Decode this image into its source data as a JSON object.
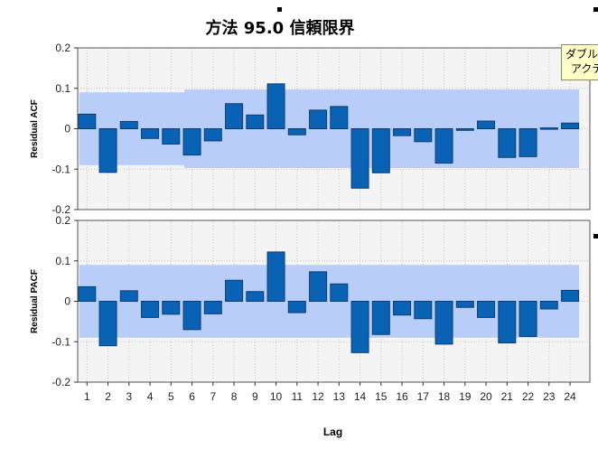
{
  "title": "方法 95.0 信頼限界",
  "tooltip": {
    "line1": "ダブル",
    "line2": "アクテ"
  },
  "colors": {
    "bar_fill": "#0a62b4",
    "bar_stroke": "#0a3d78",
    "confidence_band": "#b8cef8",
    "plot_background": "#f4f4f4",
    "grid": "#c8c8c8"
  },
  "chart_data": [
    {
      "type": "bar",
      "name": "acf",
      "ylabel": "Residual ACF",
      "xlabel": "",
      "ylim": [
        -0.2,
        0.2
      ],
      "yticks": [
        -0.2,
        -0.1,
        0,
        0.1,
        0.2
      ],
      "ytick_labels": [
        "-0.2",
        "-0.1",
        "0",
        "0.1",
        "0.2"
      ],
      "grid": true,
      "categories": [
        1,
        2,
        3,
        4,
        5,
        6,
        7,
        8,
        9,
        10,
        11,
        12,
        13,
        14,
        15,
        16,
        17,
        18,
        19,
        20,
        21,
        22,
        23,
        24
      ],
      "values": [
        0.036,
        -0.108,
        0.018,
        -0.024,
        -0.038,
        -0.065,
        -0.03,
        0.062,
        0.034,
        0.111,
        -0.015,
        0.046,
        0.055,
        -0.147,
        -0.109,
        -0.017,
        -0.032,
        -0.085,
        -0.004,
        0.019,
        -0.071,
        -0.069,
        0.002,
        0.014
      ],
      "confidence_band": {
        "segments": [
          {
            "from_lag": 1,
            "to_lag": 6,
            "limit": 0.09
          },
          {
            "from_lag": 6,
            "to_lag": 24,
            "limit": 0.097
          }
        ]
      }
    },
    {
      "type": "bar",
      "name": "pacf",
      "ylabel": "Residual PACF",
      "xlabel": "Lag",
      "ylim": [
        -0.2,
        0.2
      ],
      "yticks": [
        -0.2,
        -0.1,
        0,
        0.1,
        0.2
      ],
      "ytick_labels": [
        "-0.2",
        "-0.1",
        "0",
        "0.1",
        "0.2"
      ],
      "grid": true,
      "categories": [
        1,
        2,
        3,
        4,
        5,
        6,
        7,
        8,
        9,
        10,
        11,
        12,
        13,
        14,
        15,
        16,
        17,
        18,
        19,
        20,
        21,
        22,
        23,
        24
      ],
      "x_tick_labels": [
        "1",
        "2",
        "3",
        "4",
        "5",
        "6",
        "7",
        "8",
        "9",
        "10",
        "11",
        "12",
        "13",
        "14",
        "15",
        "16",
        "17",
        "18",
        "19",
        "20",
        "21",
        "22",
        "23",
        "24"
      ],
      "values": [
        0.036,
        -0.11,
        0.026,
        -0.04,
        -0.032,
        -0.07,
        -0.031,
        0.052,
        0.024,
        0.122,
        -0.028,
        0.073,
        0.043,
        -0.127,
        -0.082,
        -0.034,
        -0.043,
        -0.106,
        -0.015,
        -0.04,
        -0.103,
        -0.087,
        -0.019,
        0.027
      ],
      "confidence_band": {
        "segments": [
          {
            "from_lag": 1,
            "to_lag": 24,
            "limit": 0.09
          }
        ]
      }
    }
  ]
}
